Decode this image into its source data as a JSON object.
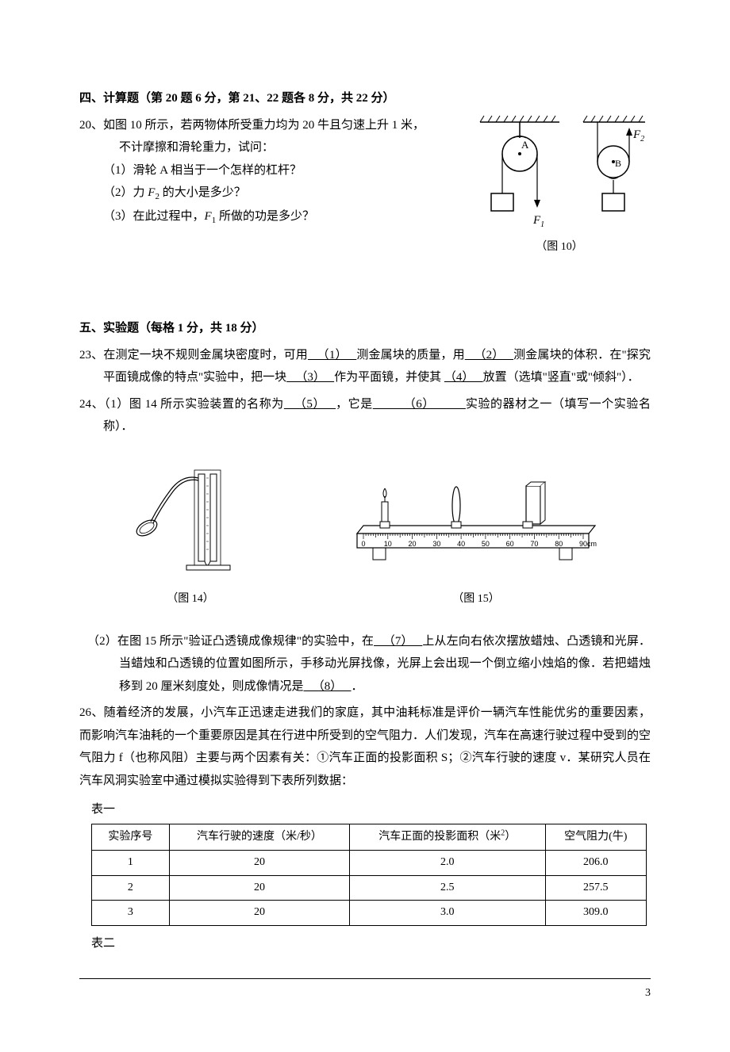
{
  "section4": {
    "title_prefix": "四、计算题",
    "title_paren": "（第 20 题 6 分，第 21、22 题各 8 分，共 22 分）",
    "q20": {
      "number": "20、",
      "line1a": "如图 10 所示，若两物体所受重力均为 20 牛且匀速上升 1 米，",
      "line1b": "不计摩擦和滑轮重力，试问：",
      "sub1": "（1）滑轮 A 相当于一个怎样的杠杆？",
      "sub2_a": "（2）力 ",
      "sub2_f": "F",
      "sub2_sub": "2",
      "sub2_b": " 的大小是多少？",
      "sub3_a": "（3）在此过程中，",
      "sub3_f": "F",
      "sub3_sub": "1",
      "sub3_b": " 所做的功是多少？",
      "fig_label": "（图 10）",
      "fig": {
        "label_A": "A",
        "label_B": "B",
        "label_F1_f": "F",
        "label_F1_sub": "1",
        "label_F2_f": "F",
        "label_F2_sub": "2"
      }
    }
  },
  "section5": {
    "title_prefix": "五、实验题",
    "title_paren": "（每格 1 分，共 18 分）",
    "q23": {
      "number": "23、",
      "text1": "在测定一块不规则金属块密度时，可用",
      "blank1": "   （1）   ",
      "text2": "测金属块的质量，用",
      "blank2": "   （2）   ",
      "text3": "测金属块的体积．在\"探究平面镜成像的特点\"实验中，把一块",
      "blank3": "   （3）   ",
      "text4": "作为平面镜，并使其",
      "blank4": "（4）   ",
      "text5": "放置（选填\"竖直\"或\"倾斜\"）．"
    },
    "q24": {
      "number": "24、",
      "text1": "（1）图 14 所示实验装置的名称为",
      "blank5": "   （5）   ",
      "text2": "，它是",
      "blank6": "         （6）         ",
      "text3": "实验的器材之一（填写一个实验名称）．",
      "fig14_label": "（图 14）",
      "fig15_label": "（图 15）",
      "optical_bench": {
        "ticks": [
          "0",
          "10",
          "20",
          "30",
          "40",
          "50",
          "60",
          "70",
          "80",
          "90cm"
        ]
      },
      "sub2_text1": "（2）在图 15 所示\"验证凸透镜成像规律\"的实验中，在",
      "sub2_blank7": "   （7）   ",
      "sub2_text2": "上从左向右依次摆放蜡烛、凸透镜和光屏．当蜡烛和凸透镜的位置如图所示，手移动光屏找像，光屏上会出现一个倒立缩小烛焰的像．若把蜡烛移到 20 厘米刻度处，则成像情况是",
      "sub2_blank8": "   （8）   ",
      "sub2_text3": "．"
    },
    "q26": {
      "number": "26、",
      "text": "随着经济的发展，小汽车正迅速走进我们的家庭，其中油耗标准是评价一辆汽车性能优劣的重要因素，而影响汽车油耗的一个重要原因是其在行进中所受到的空气阻力．人们发现，汽车在高速行驶过程中受到的空气阻力 f（也称风阻）主要与两个因素有关：①汽车正面的投影面积 S；②汽车行驶的速度 v．某研究人员在汽车风洞实验室中通过模拟实验得到下表所列数据：",
      "table1_label": "表一",
      "table2_label": "表二",
      "table1": {
        "headers": [
          "实验序号",
          "汽车行驶的速度（米/秒）",
          "汽车正面的投影面积（米 2）",
          "空气阻力(牛)"
        ],
        "rows": [
          [
            "1",
            "20",
            "2.0",
            "206.0"
          ],
          [
            "2",
            "20",
            "2.5",
            "257.5"
          ],
          [
            "3",
            "20",
            "3.0",
            "309.0"
          ]
        ]
      }
    }
  },
  "page_number": "3"
}
